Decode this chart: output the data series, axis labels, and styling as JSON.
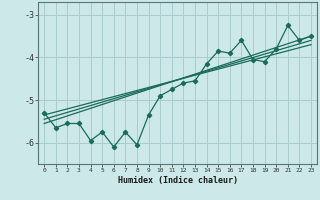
{
  "xlabel": "Humidex (Indice chaleur)",
  "x_ticks": [
    0,
    1,
    2,
    3,
    4,
    5,
    6,
    7,
    8,
    9,
    10,
    11,
    12,
    13,
    14,
    15,
    16,
    17,
    18,
    19,
    20,
    21,
    22,
    23
  ],
  "ylim": [
    -6.5,
    -2.7
  ],
  "xlim": [
    -0.5,
    23.5
  ],
  "yticks": [
    -6,
    -5,
    -4,
    -3
  ],
  "bg_color": "#cce8e8",
  "grid_color": "#aacccc",
  "line_color": "#1a6b5a",
  "data_line": [
    [
      0,
      -5.3
    ],
    [
      1,
      -5.65
    ],
    [
      2,
      -5.55
    ],
    [
      3,
      -5.55
    ],
    [
      4,
      -5.95
    ],
    [
      5,
      -5.75
    ],
    [
      6,
      -6.1
    ],
    [
      7,
      -5.75
    ],
    [
      8,
      -6.05
    ],
    [
      9,
      -5.35
    ],
    [
      10,
      -4.9
    ],
    [
      11,
      -4.75
    ],
    [
      12,
      -4.6
    ],
    [
      13,
      -4.55
    ],
    [
      14,
      -4.15
    ],
    [
      15,
      -3.85
    ],
    [
      16,
      -3.9
    ],
    [
      17,
      -3.6
    ],
    [
      18,
      -4.05
    ],
    [
      19,
      -4.1
    ],
    [
      20,
      -3.8
    ],
    [
      21,
      -3.25
    ],
    [
      22,
      -3.6
    ],
    [
      23,
      -3.5
    ]
  ],
  "trend_line1": [
    [
      0,
      -5.55
    ],
    [
      23,
      -3.5
    ]
  ],
  "trend_line2": [
    [
      0,
      -5.45
    ],
    [
      23,
      -3.6
    ]
  ],
  "trend_line3": [
    [
      0,
      -5.35
    ],
    [
      23,
      -3.7
    ]
  ]
}
